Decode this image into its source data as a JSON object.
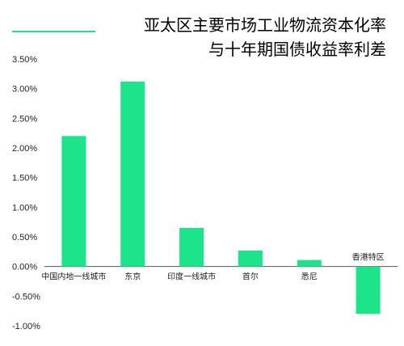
{
  "title_lines": [
    "亚太区主要市场工业物流资本化率",
    "与十年期国债收益率利差"
  ],
  "colors": {
    "bar": "#1de38a",
    "accent_line": "#1de38a",
    "axis_line": "#555555"
  },
  "chart_data": {
    "type": "bar",
    "title": "亚太区主要市场工业物流资本化率与十年期国债收益率利差",
    "categories": [
      "中国内地一线城市",
      "东京",
      "印度一线城市",
      "首尔",
      "悉尼",
      "香港特区"
    ],
    "values": [
      2.2,
      3.12,
      0.65,
      0.27,
      0.11,
      -0.8
    ],
    "y_ticks": [
      "3.50%",
      "3.00%",
      "2.50%",
      "2.00%",
      "1.50%",
      "1.00%",
      "0.50%",
      "0.00%",
      "-0.50%",
      "-1.00%"
    ],
    "ylim": [
      -1.0,
      3.5
    ],
    "grid": false,
    "legend": "none"
  }
}
